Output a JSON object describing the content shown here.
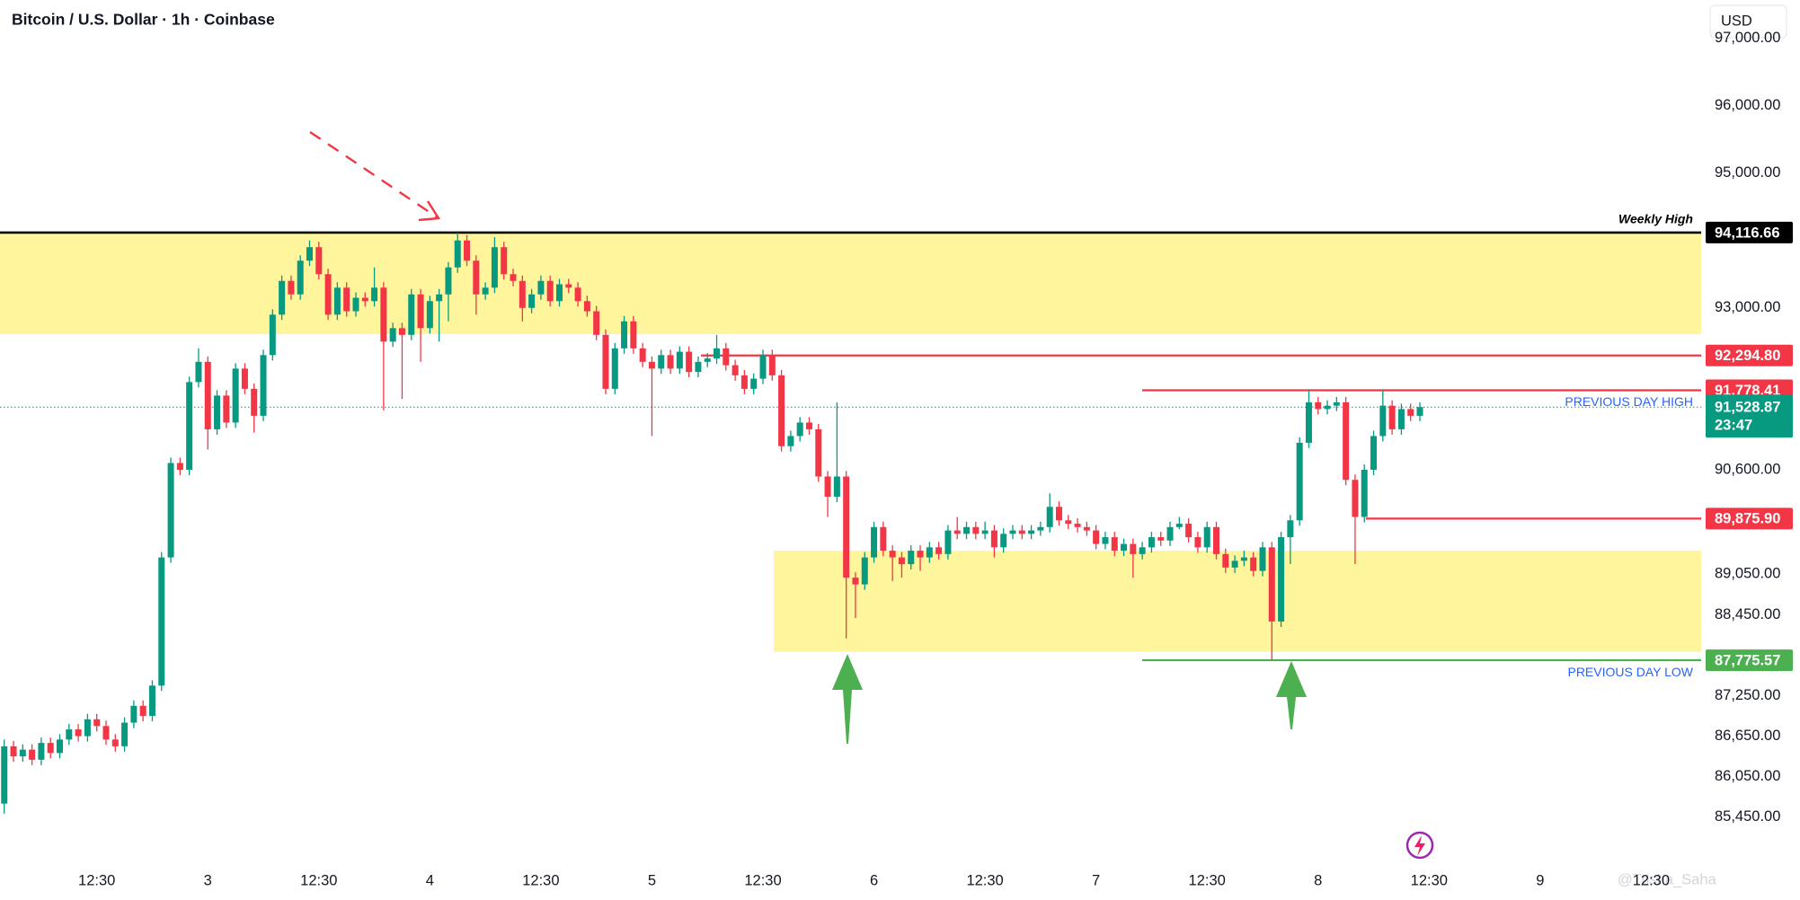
{
  "chart_data": {
    "type": "candlestick",
    "title": "Bitcoin / U.S. Dollar · 1h · Coinbase",
    "currency": "USD",
    "watermark": "@Trisha_Saha",
    "up_color": "#089981",
    "down_color": "#f23645",
    "xlim": [
      -0.46,
      183.4
    ],
    "ylim": [
      84780,
      97565
    ],
    "xticks": [
      {
        "value": 10,
        "label": "12:30"
      },
      {
        "value": 22,
        "label": "3"
      },
      {
        "value": 34,
        "label": "12:30"
      },
      {
        "value": 46,
        "label": "4"
      },
      {
        "value": 58,
        "label": "12:30"
      },
      {
        "value": 70,
        "label": "5"
      },
      {
        "value": 82,
        "label": "12:30"
      },
      {
        "value": 94,
        "label": "6"
      },
      {
        "value": 106,
        "label": "12:30"
      },
      {
        "value": 118,
        "label": "7"
      },
      {
        "value": 130,
        "label": "12:30"
      },
      {
        "value": 142,
        "label": "8"
      },
      {
        "value": 154,
        "label": "12:30"
      },
      {
        "value": 166,
        "label": "9"
      },
      {
        "value": 178,
        "label": "12:30"
      }
    ],
    "yticks": [
      {
        "value": 97000,
        "label": "97,000.00"
      },
      {
        "value": 96000,
        "label": "96,000.00"
      },
      {
        "value": 95000,
        "label": "95,000.00"
      },
      {
        "value": 93000,
        "label": "93,000.00"
      },
      {
        "value": 90600,
        "label": "90,600.00"
      },
      {
        "value": 89050,
        "label": "89,050.00"
      },
      {
        "value": 88450,
        "label": "88,450.00"
      },
      {
        "value": 87250,
        "label": "87,250.00"
      },
      {
        "value": 86650,
        "label": "86,650.00"
      },
      {
        "value": 86050,
        "label": "86,050.00"
      },
      {
        "value": 85450,
        "label": "85,450.00"
      }
    ],
    "zones": [
      {
        "top": 94116.66,
        "bottom": 92610,
        "color": "#fff59d"
      },
      {
        "top": 89400,
        "bottom": 87900,
        "color": "#fff59d"
      }
    ],
    "levels": [
      {
        "name": "Weekly High",
        "value": 94116.66,
        "value_label": "94,116.66",
        "color": "#000000"
      },
      {
        "value": 92294.8,
        "value_label": "92,294.80",
        "color": "#f23645"
      },
      {
        "name": "PREVIOUS DAY HIGH",
        "value": 91778.41,
        "value_label": "91,778.41",
        "color": "#f23645"
      },
      {
        "value": 89875.9,
        "value_label": "89,875.90",
        "color": "#f23645"
      },
      {
        "name": "PREVIOUS DAY LOW",
        "value": 87775.57,
        "value_label": "87,775.57",
        "color": "#4caf50"
      }
    ],
    "current": {
      "value": 91528.87,
      "value_label": "91,528.87",
      "countdown": "23:47",
      "color": "#089981"
    },
    "candles": [
      [
        85650,
        86600,
        85500,
        86500
      ],
      [
        86500,
        86580,
        86270,
        86350
      ],
      [
        86350,
        86530,
        86270,
        86450
      ],
      [
        86450,
        86530,
        86220,
        86300
      ],
      [
        86300,
        86630,
        86220,
        86550
      ],
      [
        86550,
        86630,
        86320,
        86400
      ],
      [
        86400,
        86680,
        86320,
        86600
      ],
      [
        86600,
        86830,
        86520,
        86750
      ],
      [
        86750,
        86830,
        86570,
        86650
      ],
      [
        86650,
        86980,
        86570,
        86900
      ],
      [
        86900,
        86980,
        86720,
        86800
      ],
      [
        86800,
        86880,
        86520,
        86600
      ],
      [
        86600,
        86680,
        86420,
        86500
      ],
      [
        86500,
        86930,
        86420,
        86850
      ],
      [
        86850,
        87180,
        86770,
        87100
      ],
      [
        87100,
        87180,
        86870,
        86950
      ],
      [
        86950,
        87480,
        86870,
        87400
      ],
      [
        87400,
        89380,
        87320,
        89300
      ],
      [
        89300,
        90780,
        89220,
        90700
      ],
      [
        90700,
        90780,
        90520,
        90600
      ],
      [
        90600,
        91980,
        90520,
        91900
      ],
      [
        91900,
        92400,
        91820,
        92200
      ],
      [
        92200,
        92280,
        90900,
        91200
      ],
      [
        91200,
        91780,
        91120,
        91700
      ],
      [
        91700,
        91780,
        91220,
        91300
      ],
      [
        91300,
        92180,
        91220,
        92100
      ],
      [
        92100,
        92180,
        91720,
        91800
      ],
      [
        91800,
        91880,
        91150,
        91400
      ],
      [
        91400,
        92380,
        91320,
        92300
      ],
      [
        92300,
        92980,
        92220,
        92900
      ],
      [
        92900,
        93480,
        92820,
        93400
      ],
      [
        93400,
        93480,
        93120,
        93200
      ],
      [
        93200,
        93780,
        93120,
        93700
      ],
      [
        93700,
        94000,
        93620,
        93900
      ],
      [
        93900,
        93980,
        93420,
        93500
      ],
      [
        93500,
        93580,
        92820,
        92900
      ],
      [
        92900,
        93380,
        92820,
        93300
      ],
      [
        93300,
        93380,
        92870,
        92950
      ],
      [
        92950,
        93230,
        92870,
        93150
      ],
      [
        93150,
        93230,
        93020,
        93100
      ],
      [
        93100,
        93600,
        93020,
        93300
      ],
      [
        93300,
        93380,
        91480,
        92500
      ],
      [
        92500,
        92780,
        92420,
        92700
      ],
      [
        92700,
        92780,
        91650,
        92600
      ],
      [
        92600,
        93280,
        92520,
        93200
      ],
      [
        93200,
        93280,
        92200,
        92700
      ],
      [
        92700,
        93180,
        92620,
        93100
      ],
      [
        93100,
        93280,
        92500,
        93200
      ],
      [
        93200,
        93680,
        92800,
        93600
      ],
      [
        93600,
        94116.66,
        93520,
        94000
      ],
      [
        94000,
        94080,
        93620,
        93700
      ],
      [
        93700,
        93780,
        92900,
        93200
      ],
      [
        93200,
        93380,
        93120,
        93300
      ],
      [
        93300,
        94050,
        93220,
        93900
      ],
      [
        93900,
        93980,
        93420,
        93500
      ],
      [
        93500,
        93580,
        93320,
        93400
      ],
      [
        93400,
        93480,
        92800,
        93000
      ],
      [
        93000,
        93280,
        92920,
        93200
      ],
      [
        93200,
        93480,
        93120,
        93400
      ],
      [
        93400,
        93480,
        93020,
        93100
      ],
      [
        93100,
        93430,
        93020,
        93350
      ],
      [
        93350,
        93430,
        93220,
        93300
      ],
      [
        93300,
        93380,
        93020,
        93100
      ],
      [
        93100,
        93180,
        92870,
        92950
      ],
      [
        92950,
        93030,
        92520,
        92600
      ],
      [
        92600,
        92680,
        91720,
        91800
      ],
      [
        91800,
        92480,
        91720,
        92400
      ],
      [
        92400,
        92880,
        92320,
        92800
      ],
      [
        92800,
        92880,
        92320,
        92400
      ],
      [
        92400,
        92480,
        92120,
        92200
      ],
      [
        92200,
        92280,
        91100,
        92100
      ],
      [
        92100,
        92380,
        92020,
        92300
      ],
      [
        92300,
        92380,
        92020,
        92100
      ],
      [
        92100,
        92430,
        92020,
        92350
      ],
      [
        92350,
        92430,
        91970,
        92050
      ],
      [
        92050,
        92280,
        91970,
        92200
      ],
      [
        92200,
        92330,
        92120,
        92250
      ],
      [
        92250,
        92600,
        92170,
        92400
      ],
      [
        92400,
        92480,
        92070,
        92150
      ],
      [
        92150,
        92230,
        91920,
        92000
      ],
      [
        92000,
        92080,
        91720,
        91800
      ],
      [
        91800,
        92030,
        91720,
        91950
      ],
      [
        91950,
        92380,
        91870,
        92300
      ],
      [
        92300,
        92380,
        91920,
        92000
      ],
      [
        92000,
        92080,
        90870,
        90950
      ],
      [
        90950,
        91180,
        90870,
        91100
      ],
      [
        91100,
        91380,
        91020,
        91300
      ],
      [
        91300,
        91380,
        91120,
        91200
      ],
      [
        91200,
        91280,
        90420,
        90500
      ],
      [
        90500,
        90580,
        89900,
        90200
      ],
      [
        90200,
        91600,
        90120,
        90500
      ],
      [
        90500,
        90580,
        88100,
        89000
      ],
      [
        89000,
        89080,
        88400,
        88900
      ],
      [
        88900,
        89380,
        88820,
        89300
      ],
      [
        89300,
        89830,
        89220,
        89750
      ],
      [
        89750,
        89830,
        89320,
        89400
      ],
      [
        89400,
        89480,
        88950,
        89300
      ],
      [
        89300,
        89380,
        89000,
        89200
      ],
      [
        89200,
        89480,
        89120,
        89400
      ],
      [
        89400,
        89480,
        89100,
        89300
      ],
      [
        89300,
        89530,
        89220,
        89450
      ],
      [
        89450,
        89530,
        89270,
        89350
      ],
      [
        89350,
        89780,
        89270,
        89700
      ],
      [
        89700,
        89900,
        89570,
        89650
      ],
      [
        89650,
        89830,
        89570,
        89750
      ],
      [
        89750,
        89830,
        89570,
        89650
      ],
      [
        89650,
        89830,
        89570,
        89700
      ],
      [
        89700,
        89780,
        89300,
        89450
      ],
      [
        89450,
        89730,
        89370,
        89650
      ],
      [
        89650,
        89780,
        89570,
        89700
      ],
      [
        89700,
        89780,
        89570,
        89650
      ],
      [
        89650,
        89780,
        89570,
        89700
      ],
      [
        89700,
        89830,
        89620,
        89750
      ],
      [
        89750,
        90250,
        89670,
        90050
      ],
      [
        90050,
        90130,
        89770,
        89850
      ],
      [
        89850,
        89930,
        89720,
        89800
      ],
      [
        89800,
        89880,
        89670,
        89750
      ],
      [
        89750,
        89830,
        89620,
        89700
      ],
      [
        89700,
        89780,
        89420,
        89500
      ],
      [
        89500,
        89680,
        89420,
        89600
      ],
      [
        89600,
        89680,
        89320,
        89400
      ],
      [
        89400,
        89580,
        89320,
        89500
      ],
      [
        89500,
        89580,
        89000,
        89350
      ],
      [
        89350,
        89530,
        89270,
        89450
      ],
      [
        89450,
        89680,
        89370,
        89600
      ],
      [
        89600,
        89680,
        89470,
        89550
      ],
      [
        89550,
        89830,
        89470,
        89750
      ],
      [
        89750,
        89900,
        89720,
        89800
      ],
      [
        89800,
        89880,
        89520,
        89600
      ],
      [
        89600,
        89680,
        89370,
        89450
      ],
      [
        89450,
        89830,
        89370,
        89750
      ],
      [
        89750,
        89830,
        89270,
        89350
      ],
      [
        89350,
        89430,
        89070,
        89150
      ],
      [
        89150,
        89330,
        89070,
        89250
      ],
      [
        89250,
        89400,
        89170,
        89300
      ],
      [
        89300,
        89380,
        89020,
        89100
      ],
      [
        89100,
        89530,
        89020,
        89450
      ],
      [
        89450,
        89530,
        87775.57,
        88350
      ],
      [
        88350,
        89680,
        88270,
        89600
      ],
      [
        89600,
        89930,
        89200,
        89850
      ],
      [
        89850,
        91080,
        89770,
        91000
      ],
      [
        91000,
        91778.41,
        90920,
        91600
      ],
      [
        91600,
        91680,
        91420,
        91500
      ],
      [
        91500,
        91630,
        91420,
        91550
      ],
      [
        91550,
        91680,
        91470,
        91600
      ],
      [
        91600,
        91680,
        90370,
        90450
      ],
      [
        90450,
        90530,
        89200,
        89900
      ],
      [
        89900,
        90680,
        89820,
        90600
      ],
      [
        90600,
        91180,
        90520,
        91100
      ],
      [
        91100,
        91778,
        91020,
        91550
      ],
      [
        91550,
        91630,
        91120,
        91200
      ],
      [
        91200,
        91580,
        91120,
        91500
      ],
      [
        91500,
        91580,
        91320,
        91400
      ],
      [
        91400,
        91600,
        91320,
        91528.87
      ]
    ]
  }
}
